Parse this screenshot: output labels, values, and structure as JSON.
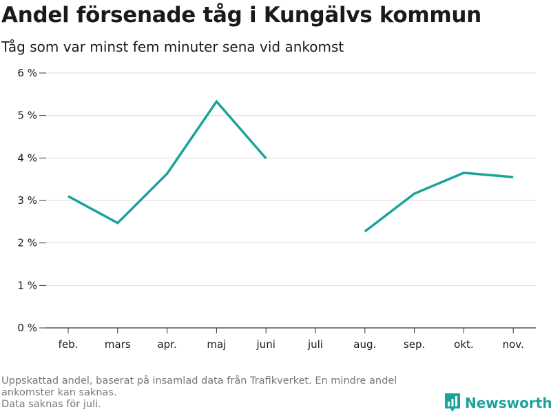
{
  "header": {
    "title": "Andel försenade tåg i Kungälvs kommun",
    "subtitle": "Tåg som var minst fem minuter sena vid ankomst"
  },
  "chart_data": {
    "type": "line",
    "categories": [
      "feb.",
      "mars",
      "apr.",
      "maj",
      "juni",
      "juli",
      "aug.",
      "sep.",
      "okt.",
      "nov."
    ],
    "series": [
      {
        "values": [
          3.1,
          2.47,
          3.63,
          5.33,
          3.99,
          null,
          2.27,
          3.16,
          3.65,
          3.55
        ]
      }
    ],
    "y_ticks": [
      0,
      1,
      2,
      3,
      4,
      5,
      6
    ],
    "y_tick_labels": [
      "0 %",
      "1 %",
      "2 %",
      "3 %",
      "4 %",
      "5 %",
      "6 %"
    ],
    "ylim": [
      0,
      6
    ],
    "grid": true,
    "line_color": "#1aa39a",
    "grid_color": "#dddddd",
    "axis_color": "#333333"
  },
  "footer": {
    "note_line1": "Uppskattad andel, baserat på insamlad data från Trafikverket. En mindre andel",
    "note_line2": "ankomster kan saknas.",
    "note_line3": "Data saknas för juli."
  },
  "brand": {
    "name": "Newsworthy",
    "icon": "newsworthy-logo-icon",
    "color": "#1aa39a"
  }
}
